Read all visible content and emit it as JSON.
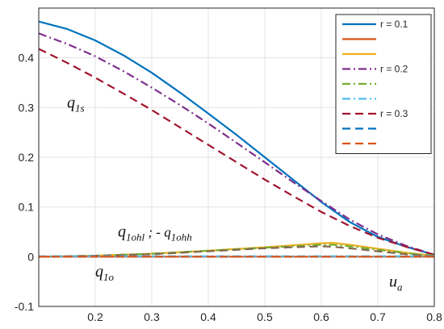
{
  "chart_data": {
    "type": "line",
    "xlim": [
      0.1,
      0.8
    ],
    "ylim": [
      -0.1,
      0.5
    ],
    "xticks": [
      "0.2",
      "0.3",
      "0.4",
      "0.5",
      "0.6",
      "0.7",
      "0.8"
    ],
    "yticks": [
      "-0.1",
      "0",
      "0.1",
      "0.2",
      "0.3",
      "0.4"
    ],
    "grid": true,
    "legend_position": "top-right",
    "annotations": [
      {
        "id": "q1s",
        "main": "q",
        "sub": "1s",
        "x": 0.15,
        "y": 0.3
      },
      {
        "id": "q1ohh",
        "main": "q",
        "sub": "1ohl",
        "mid": " ; - q",
        "sub2": "1ohh",
        "x": 0.24,
        "y": 0.04
      },
      {
        "id": "q1o",
        "main": "q",
        "sub": "1o",
        "x": 0.2,
        "y": -0.04
      },
      {
        "id": "ua",
        "main": "u",
        "sub": "a",
        "x": 0.72,
        "y": -0.06
      }
    ],
    "legend_entries": [
      {
        "label": "r = 0.1",
        "color": "#0072BD",
        "dash": "solid"
      },
      {
        "label": "",
        "color": "#D95319",
        "dash": "solid"
      },
      {
        "label": "",
        "color": "#EDB120",
        "dash": "solid"
      },
      {
        "label": "r = 0.2",
        "color": "#7E2F8E",
        "dash": "dashdot"
      },
      {
        "label": "",
        "color": "#77AC30",
        "dash": "dashdot"
      },
      {
        "label": "",
        "color": "#4DBEEE",
        "dash": "dashdot"
      },
      {
        "label": "r = 0.3",
        "color": "#A2142F",
        "dash": "dashed"
      },
      {
        "label": "",
        "color": "#0072BD",
        "dash": "dashed"
      },
      {
        "label": "",
        "color": "#D95319",
        "dash": "dashed"
      }
    ],
    "series": [
      {
        "color": "#0072BD",
        "dash": "solid",
        "x": [
          0.1,
          0.15,
          0.2,
          0.25,
          0.3,
          0.35,
          0.4,
          0.45,
          0.5,
          0.55,
          0.6,
          0.65,
          0.7,
          0.75,
          0.8
        ],
        "y": [
          0.473,
          0.458,
          0.435,
          0.405,
          0.37,
          0.33,
          0.288,
          0.245,
          0.2,
          0.155,
          0.11,
          0.07,
          0.04,
          0.02,
          0.004
        ]
      },
      {
        "color": "#7E2F8E",
        "dash": "dashdot",
        "x": [
          0.1,
          0.15,
          0.2,
          0.25,
          0.3,
          0.35,
          0.4,
          0.45,
          0.5,
          0.55,
          0.6,
          0.65,
          0.7,
          0.75,
          0.8
        ],
        "y": [
          0.449,
          0.428,
          0.403,
          0.373,
          0.34,
          0.305,
          0.268,
          0.229,
          0.19,
          0.15,
          0.112,
          0.075,
          0.045,
          0.022,
          0.004
        ]
      },
      {
        "color": "#A2142F",
        "dash": "dashed",
        "x": [
          0.1,
          0.15,
          0.2,
          0.25,
          0.3,
          0.35,
          0.4,
          0.45,
          0.5,
          0.55,
          0.6,
          0.65,
          0.7,
          0.75,
          0.8
        ],
        "y": [
          0.418,
          0.39,
          0.36,
          0.328,
          0.295,
          0.26,
          0.225,
          0.19,
          0.155,
          0.122,
          0.09,
          0.062,
          0.038,
          0.02,
          0.004
        ]
      },
      {
        "color": "#EDB120",
        "dash": "solid",
        "x": [
          0.1,
          0.2,
          0.3,
          0.4,
          0.5,
          0.55,
          0.6,
          0.62,
          0.65,
          0.7,
          0.75,
          0.8
        ],
        "y": [
          0.0,
          0.002,
          0.006,
          0.012,
          0.019,
          0.023,
          0.027,
          0.028,
          0.024,
          0.016,
          0.008,
          0.002
        ]
      },
      {
        "color": "#77AC30",
        "dash": "dashdot",
        "x": [
          0.1,
          0.2,
          0.3,
          0.4,
          0.5,
          0.55,
          0.6,
          0.62,
          0.65,
          0.7,
          0.75,
          0.8
        ],
        "y": [
          0.0,
          0.002,
          0.006,
          0.012,
          0.018,
          0.021,
          0.024,
          0.024,
          0.021,
          0.014,
          0.007,
          0.002
        ]
      },
      {
        "color": "#7f6a50",
        "dash": "dashed",
        "x": [
          0.1,
          0.2,
          0.3,
          0.4,
          0.5,
          0.55,
          0.6,
          0.62,
          0.65,
          0.7,
          0.75,
          0.8
        ],
        "y": [
          0.0,
          0.002,
          0.005,
          0.011,
          0.017,
          0.019,
          0.021,
          0.02,
          0.017,
          0.011,
          0.005,
          0.001
        ]
      },
      {
        "color": "#D95319",
        "dash": "solid",
        "x": [
          0.1,
          0.8
        ],
        "y": [
          0.0,
          0.0
        ]
      },
      {
        "color": "#0072BD",
        "dash": "dashed",
        "x": [
          0.1,
          0.8
        ],
        "y": [
          0.0,
          0.0
        ]
      },
      {
        "color": "#4DBEEE",
        "dash": "dashdot",
        "x": [
          0.1,
          0.8
        ],
        "y": [
          0.001,
          0.001
        ]
      },
      {
        "color": "#D95319",
        "dash": "dashed",
        "x": [
          0.1,
          0.8
        ],
        "y": [
          0.0,
          0.0
        ]
      }
    ]
  }
}
